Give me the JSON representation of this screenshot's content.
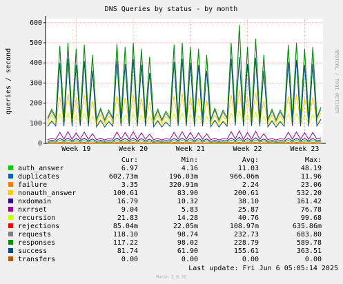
{
  "chart_data": {
    "type": "line",
    "title": "DNS Queries by status - by month",
    "y_label": "queries / second",
    "watermark": "RRDTOOL / TOBI OETIKER",
    "last_update": "Last update: Fri Jun  6 05:05:14 2025",
    "footer": "Munin 2.0.37",
    "categories": [
      null,
      null,
      null,
      null,
      null,
      null,
      null,
      "Week 19",
      null,
      null,
      null,
      null,
      null,
      null,
      null,
      null,
      null,
      null,
      null,
      null,
      null,
      "Week 20",
      null,
      null,
      null,
      null,
      null,
      null,
      null,
      null,
      null,
      null,
      null,
      null,
      null,
      "Week 21",
      null,
      null,
      null,
      null,
      null,
      null,
      null,
      null,
      null,
      null,
      null,
      null,
      null,
      "Week 22",
      null,
      null,
      null,
      null,
      null,
      null,
      null,
      null,
      null,
      null,
      null,
      null,
      null,
      "Week 23",
      null,
      null,
      null,
      null
    ],
    "ylim": [
      0,
      620
    ],
    "yticks": [
      0,
      100,
      200,
      300,
      400,
      500,
      600
    ],
    "grid": true,
    "stat_headers": [
      "Cur:",
      "Min:",
      "Avg:",
      "Max:"
    ],
    "series": [
      {
        "name": "auth_answer",
        "color": "#00cc00",
        "stats": [
          "6.97",
          "4.16",
          "11.03",
          "48.19"
        ],
        "values": [
          5,
          8,
          6,
          15,
          6,
          16,
          6,
          14,
          6,
          15,
          6,
          13,
          5,
          8,
          5,
          7,
          6,
          15,
          6,
          14,
          6,
          16,
          6,
          14,
          6,
          12,
          5,
          8,
          5,
          7,
          6,
          15,
          6,
          16,
          6,
          15,
          6,
          14,
          6,
          13,
          5,
          8,
          5,
          7,
          6,
          16,
          7,
          18,
          6,
          14,
          6,
          17,
          6,
          13,
          5,
          8,
          5,
          7,
          6,
          15,
          6,
          16,
          6,
          14,
          6,
          15,
          7,
          9
        ]
      },
      {
        "name": "duplicates",
        "color": "#0066b3",
        "stats": [
          "602.73m",
          "196.03m",
          "966.06m",
          "11.96"
        ],
        "values": [
          0.4,
          0.6,
          0.5,
          2,
          0.6,
          2.2,
          0.5,
          1.8,
          0.6,
          2,
          0.5,
          1.6,
          0.4,
          0.6,
          0.4,
          0.5,
          0.5,
          2,
          0.6,
          1.9,
          0.6,
          2.2,
          0.5,
          1.8,
          0.5,
          1.5,
          0.4,
          0.6,
          0.4,
          0.5,
          0.5,
          2,
          0.6,
          2.2,
          0.6,
          1.9,
          0.5,
          1.8,
          0.5,
          1.6,
          0.4,
          0.6,
          0.4,
          0.5,
          0.6,
          2.2,
          0.7,
          3,
          0.5,
          1.9,
          0.6,
          2.3,
          0.5,
          1.6,
          0.4,
          0.6,
          0.4,
          0.5,
          0.5,
          2,
          0.6,
          2.1,
          0.6,
          1.8,
          0.5,
          1.9,
          0.6,
          0.7
        ]
      },
      {
        "name": "failure",
        "color": "#ff8000",
        "stats": [
          "3.35",
          "320.91m",
          "2.24",
          "23.06"
        ],
        "values": [
          2,
          3,
          2,
          5,
          3,
          5,
          2,
          4,
          3,
          5,
          2,
          4,
          2,
          3,
          2,
          3,
          2,
          5,
          3,
          5,
          3,
          5,
          2,
          4,
          2,
          4,
          2,
          3,
          2,
          3,
          2,
          5,
          3,
          5,
          3,
          5,
          2,
          4,
          2,
          4,
          2,
          3,
          2,
          3,
          3,
          5,
          3,
          6,
          2,
          5,
          3,
          5,
          2,
          4,
          2,
          3,
          2,
          3,
          2,
          5,
          3,
          5,
          3,
          4,
          2,
          5,
          3,
          3
        ]
      },
      {
        "name": "nonauth_answer",
        "color": "#ffcc00",
        "stats": [
          "100.61",
          "83.90",
          "200.61",
          "532.20"
        ],
        "values": [
          105,
          140,
          108,
          230,
          110,
          245,
          107,
          225,
          109,
          240,
          108,
          210,
          104,
          142,
          103,
          136,
          108,
          238,
          110,
          228,
          109,
          245,
          107,
          225,
          108,
          205,
          104,
          140,
          103,
          135,
          108,
          235,
          110,
          248,
          109,
          230,
          107,
          225,
          108,
          212,
          104,
          142,
          103,
          136,
          109,
          240,
          112,
          265,
          108,
          228,
          110,
          250,
          108,
          210,
          104,
          140,
          103,
          136,
          108,
          235,
          110,
          245,
          109,
          226,
          107,
          230,
          110,
          150
        ]
      },
      {
        "name": "nxdomain",
        "color": "#330099",
        "stats": [
          "16.79",
          "10.32",
          "38.10",
          "161.42"
        ],
        "values": [
          10,
          15,
          12,
          25,
          13,
          27,
          12,
          24,
          13,
          26,
          12,
          22,
          10,
          15,
          10,
          14,
          12,
          26,
          13,
          25,
          13,
          27,
          12,
          24,
          12,
          21,
          10,
          15,
          10,
          14,
          12,
          25,
          13,
          27,
          13,
          25,
          12,
          24,
          12,
          22,
          10,
          15,
          10,
          14,
          13,
          27,
          14,
          30,
          12,
          25,
          13,
          28,
          12,
          22,
          10,
          15,
          10,
          14,
          12,
          25,
          13,
          26,
          13,
          24,
          12,
          25,
          13,
          17
        ]
      },
      {
        "name": "nxrrset",
        "color": "#990099",
        "stats": [
          "9.04",
          "5.83",
          "25.87",
          "76.78"
        ],
        "values": [
          18,
          25,
          20,
          55,
          21,
          58,
          20,
          52,
          21,
          56,
          20,
          48,
          18,
          26,
          17,
          24,
          20,
          56,
          21,
          54,
          21,
          58,
          20,
          52,
          20,
          46,
          18,
          25,
          17,
          24,
          20,
          55,
          21,
          58,
          21,
          54,
          20,
          52,
          20,
          48,
          18,
          26,
          17,
          24,
          21,
          58,
          22,
          62,
          20,
          54,
          21,
          60,
          20,
          48,
          18,
          25,
          17,
          24,
          20,
          55,
          21,
          57,
          21,
          53,
          20,
          54,
          21,
          28
        ]
      },
      {
        "name": "recursion",
        "color": "#ccff00",
        "stats": [
          "21.83",
          "14.28",
          "40.76",
          "99.68"
        ],
        "values": [
          95,
          115,
          98,
          145,
          99,
          150,
          98,
          140,
          99,
          148,
          98,
          135,
          95,
          116,
          94,
          112,
          98,
          148,
          99,
          142,
          99,
          150,
          98,
          140,
          98,
          132,
          95,
          115,
          94,
          111,
          98,
          146,
          99,
          150,
          99,
          143,
          98,
          140,
          98,
          134,
          95,
          116,
          94,
          112,
          99,
          150,
          101,
          160,
          98,
          142,
          99,
          152,
          98,
          134,
          95,
          115,
          94,
          112,
          98,
          146,
          99,
          150,
          99,
          141,
          98,
          144,
          99,
          118
        ]
      },
      {
        "name": "rejections",
        "color": "#ff0000",
        "stats": [
          "85.04m",
          "22.05m",
          "108.97m",
          "635.86m"
        ],
        "values": [
          0.05,
          0.1,
          0.05,
          0.3,
          0.05,
          0.3,
          0.05,
          0.3,
          0.05,
          0.3,
          0.05,
          0.3,
          0.05,
          0.1,
          0.05,
          0.1,
          0.05,
          0.3,
          0.05,
          0.3,
          0.05,
          0.3,
          0.05,
          0.3,
          0.05,
          0.3,
          0.05,
          0.1,
          0.05,
          0.1,
          0.05,
          0.3,
          0.05,
          0.3,
          0.05,
          0.3,
          0.05,
          0.3,
          0.05,
          0.3,
          0.05,
          0.1,
          0.05,
          0.1,
          0.05,
          0.3,
          0.05,
          0.3,
          0.05,
          0.3,
          0.05,
          0.3,
          0.05,
          0.3,
          0.05,
          0.1,
          0.05,
          0.1,
          0.05,
          0.3,
          0.05,
          0.3,
          0.05,
          0.3,
          0.05,
          0.3,
          0.05,
          0.3
        ]
      },
      {
        "name": "requests",
        "color": "#808080",
        "stats": [
          "118.10",
          "98.74",
          "232.73",
          "683.80"
        ],
        "values": [
          118,
          160,
          122,
          475,
          120,
          490,
          119,
          460,
          122,
          480,
          120,
          430,
          113,
          165,
          111,
          155,
          119,
          485,
          122,
          470,
          120,
          490,
          118,
          460,
          120,
          420,
          113,
          160,
          111,
          150,
          119,
          480,
          122,
          490,
          120,
          470,
          118,
          460,
          120,
          430,
          113,
          165,
          111,
          155,
          120,
          490,
          124,
          580,
          120,
          470,
          122,
          510,
          119,
          430,
          113,
          160,
          111,
          155,
          119,
          480,
          122,
          490,
          120,
          460,
          118,
          470,
          122,
          170
        ]
      },
      {
        "name": "responses",
        "color": "#008f00",
        "stats": [
          "117.22",
          "98.02",
          "228.79",
          "589.78"
        ],
        "values": [
          125,
          170,
          130,
          485,
          128,
          500,
          126,
          470,
          130,
          490,
          127,
          440,
          120,
          175,
          118,
          165,
          126,
          495,
          130,
          480,
          128,
          500,
          125,
          470,
          127,
          430,
          120,
          170,
          118,
          160,
          126,
          490,
          130,
          500,
          128,
          480,
          125,
          470,
          127,
          440,
          120,
          175,
          118,
          165,
          128,
          500,
          132,
          589,
          127,
          480,
          130,
          520,
          126,
          440,
          120,
          170,
          118,
          165,
          126,
          490,
          130,
          500,
          128,
          470,
          125,
          480,
          130,
          180
        ]
      },
      {
        "name": "success",
        "color": "#00487d",
        "stats": [
          "81.74",
          "61.90",
          "155.61",
          "363.51"
        ],
        "values": [
          84,
          110,
          86,
          400,
          85,
          420,
          84,
          390,
          86,
          410,
          85,
          360,
          82,
          115,
          81,
          108,
          85,
          410,
          86,
          395,
          85,
          420,
          84,
          390,
          85,
          350,
          82,
          112,
          81,
          105,
          85,
          405,
          86,
          420,
          85,
          400,
          84,
          390,
          85,
          360,
          82,
          115,
          81,
          108,
          85,
          420,
          88,
          430,
          85,
          395,
          86,
          425,
          85,
          360,
          82,
          112,
          81,
          108,
          85,
          405,
          86,
          415,
          85,
          390,
          84,
          395,
          86,
          120
        ]
      },
      {
        "name": "transfers",
        "color": "#b35a00",
        "stats": [
          "0.00",
          "0.00",
          "0.00",
          "0.00"
        ],
        "values": [
          0,
          0,
          0,
          0,
          0,
          0,
          0,
          0,
          0,
          0,
          0,
          0,
          0,
          0,
          0,
          0,
          0,
          0,
          0,
          0,
          0,
          0,
          0,
          0,
          0,
          0,
          0,
          0,
          0,
          0,
          0,
          0,
          0,
          0,
          0,
          0,
          0,
          0,
          0,
          0,
          0,
          0,
          0,
          0,
          0,
          0,
          0,
          0,
          0,
          0,
          0,
          0,
          0,
          0,
          0,
          0,
          0,
          0,
          0,
          0,
          0,
          0,
          0,
          0,
          0,
          0,
          0,
          0
        ]
      }
    ]
  }
}
